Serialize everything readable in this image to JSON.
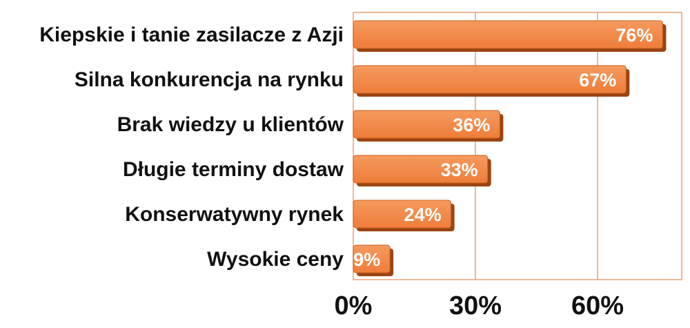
{
  "chart_data": {
    "type": "bar",
    "orientation": "horizontal",
    "categories": [
      "Kiepskie i tanie zasilacze z Azji",
      "Silna konkurencja na rynku",
      "Brak wiedzy u klientów",
      "Długie terminy dostaw",
      "Konserwatywny rynek",
      "Wysokie ceny"
    ],
    "values": [
      76,
      67,
      36,
      33,
      24,
      9
    ],
    "value_labels": [
      "76%",
      "67%",
      "36%",
      "33%",
      "24%",
      "9%"
    ],
    "x_ticks": [
      0,
      30,
      60
    ],
    "x_tick_labels": [
      "0%",
      "30%",
      "60%"
    ],
    "xlim": [
      0,
      80
    ],
    "grid": "vertical",
    "colors": {
      "bar": "#ee7d3a",
      "bar_light": "#f59a5e",
      "bar_shadow": "#9a4412",
      "grid": "#e8a070",
      "text": "#111111"
    }
  }
}
